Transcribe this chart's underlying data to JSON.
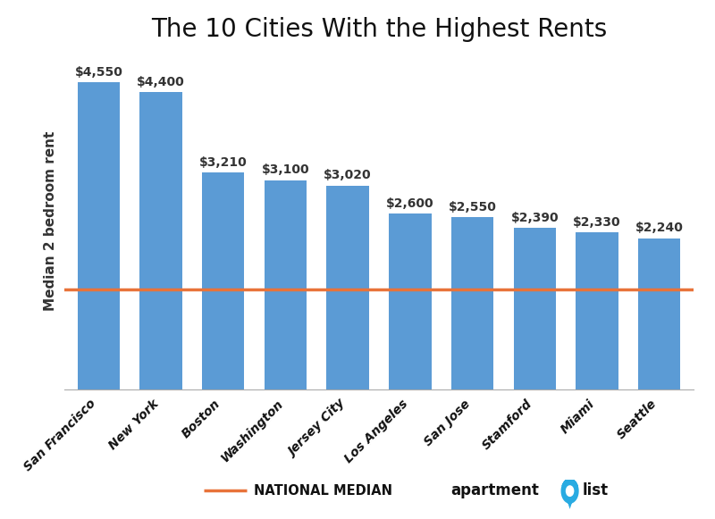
{
  "title": "The 10 Cities With the Highest Rents",
  "categories": [
    "San Francisco",
    "New York",
    "Boston",
    "Washington",
    "Jersey City",
    "Los Angeles",
    "San Jose",
    "Stamford",
    "Miami",
    "Seattle"
  ],
  "values": [
    4550,
    4400,
    3210,
    3100,
    3020,
    2600,
    2550,
    2390,
    2330,
    2240
  ],
  "labels": [
    "$4,550",
    "$4,400",
    "$3,210",
    "$3,100",
    "$3,020",
    "$2,600",
    "$2,550",
    "$2,390",
    "$2,330",
    "$2,240"
  ],
  "bar_color": "#5B9BD5",
  "national_median": 1480,
  "national_median_color": "#E8733A",
  "ylabel": "Median 2 bedroom rent",
  "ylim_min": 0,
  "ylim_max": 5000,
  "background_color": "#FFFFFF",
  "title_fontsize": 20,
  "label_fontsize": 10,
  "ylabel_fontsize": 11,
  "tick_fontsize": 10,
  "legend_fontsize": 10.5
}
